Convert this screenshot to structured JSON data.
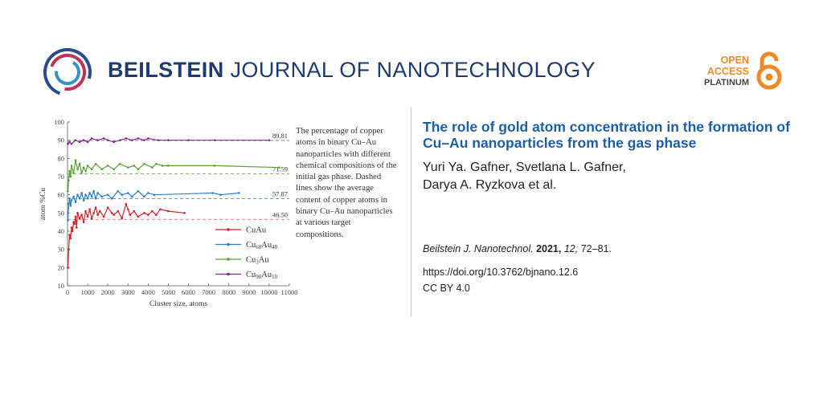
{
  "header": {
    "journal_bold": "BEILSTEIN",
    "journal_rest": " JOURNAL OF NANOTECHNOLOGY",
    "open_access": {
      "line1": "OPEN",
      "line2": "ACCESS",
      "line3": "PLATINUM"
    },
    "colors": {
      "journal": "#1f3b6e",
      "open_access": "#f08a24"
    }
  },
  "figure": {
    "caption": "The percentage of copper atoms in binary Cu–Au nanoparticles with different chemical compositions of the initial gas phase. Dashed lines show the average content of copper atoms in binary Cu–Au nanoparticles at various target compositions."
  },
  "chart_data": {
    "type": "line",
    "xlabel": "Cluster size, atoms",
    "ylabel": "atom %Cu",
    "xlim": [
      0,
      11000
    ],
    "ylim": [
      10,
      100
    ],
    "xticks": [
      0,
      1000,
      2000,
      3000,
      4000,
      5000,
      6000,
      7000,
      8000,
      9000,
      10000,
      11000
    ],
    "yticks": [
      10,
      20,
      30,
      40,
      50,
      60,
      70,
      80,
      90,
      100
    ],
    "grid": false,
    "legend_position": "bottom-center",
    "reference_lines": [
      {
        "value": 89.81,
        "label": "89.81",
        "color": "#9c4fa0"
      },
      {
        "value": 71.59,
        "label": "71.59",
        "color": "#7cab5b"
      },
      {
        "value": 57.87,
        "label": "57.87",
        "color": "#5aa0d8"
      },
      {
        "value": 46.5,
        "label": "46.50",
        "color": "#e07070"
      }
    ],
    "series": [
      {
        "name": "CuAu",
        "base": "Cu",
        "sub1": "",
        "mid": "Au",
        "sub2": "",
        "color": "#c8262d",
        "x": [
          20,
          60,
          100,
          150,
          200,
          250,
          300,
          350,
          400,
          450,
          500,
          600,
          700,
          800,
          900,
          1000,
          1100,
          1200,
          1300,
          1400,
          1500,
          1600,
          1800,
          2000,
          2200,
          2300,
          2500,
          2700,
          2900,
          3000,
          3100,
          3300,
          3500,
          3800,
          4000,
          4200,
          4400,
          4600,
          5000,
          5800
        ],
        "y": [
          20,
          30,
          38,
          36,
          42,
          40,
          45,
          44,
          48,
          42,
          50,
          47,
          49,
          45,
          51,
          48,
          52,
          47,
          50,
          53,
          49,
          51,
          48,
          53,
          50,
          49,
          51,
          47,
          55,
          52,
          49,
          51,
          48,
          50,
          49,
          51,
          49,
          52,
          51,
          50
        ]
      },
      {
        "name": "Cu60Au40",
        "base": "Cu",
        "sub1": "60",
        "mid": "Au",
        "sub2": "40",
        "color": "#2a7fc6",
        "x": [
          20,
          60,
          100,
          150,
          200,
          300,
          400,
          500,
          600,
          700,
          800,
          900,
          1000,
          1100,
          1200,
          1300,
          1400,
          1500,
          1700,
          2000,
          2200,
          2500,
          2700,
          3000,
          3200,
          3500,
          3800,
          4000,
          4300,
          7200,
          7600,
          8500
        ],
        "y": [
          46,
          55,
          58,
          54,
          57,
          59,
          56,
          60,
          58,
          61,
          57,
          60,
          58,
          61,
          59,
          62,
          58,
          61,
          59,
          60,
          58,
          62,
          60,
          61,
          59,
          62,
          59,
          61,
          60,
          61,
          60,
          61
        ]
      },
      {
        "name": "Cu3Au",
        "base": "Cu",
        "sub1": "3",
        "mid": "Au",
        "sub2": "",
        "color": "#5a9e36",
        "x": [
          20,
          60,
          100,
          150,
          200,
          300,
          400,
          500,
          600,
          700,
          800,
          900,
          1000,
          1200,
          1400,
          1700,
          2000,
          2300,
          2600,
          3000,
          3300,
          3500,
          3800,
          4200,
          4400,
          4700,
          5000,
          7300,
          10500
        ],
        "y": [
          62,
          68,
          73,
          70,
          76,
          72,
          79,
          74,
          77,
          72,
          75,
          73,
          76,
          74,
          77,
          74,
          76,
          74,
          77,
          75,
          76,
          74,
          77,
          75,
          77,
          76,
          76,
          76,
          75
        ]
      },
      {
        "name": "Cu90Au10",
        "base": "Cu",
        "sub1": "90",
        "mid": "Au",
        "sub2": "10",
        "color": "#7b2a8c",
        "x": [
          20,
          100,
          200,
          400,
          600,
          800,
          1000,
          1200,
          1500,
          1800,
          2000,
          2300,
          2600,
          2900,
          3200,
          3500,
          3800,
          4000,
          4500,
          5000,
          6000,
          7300,
          10000
        ],
        "y": [
          88,
          89,
          88,
          90,
          89,
          90,
          89,
          91,
          90,
          91,
          90,
          89,
          90,
          91,
          90,
          91,
          90,
          91,
          90,
          90,
          90,
          90,
          90
        ]
      }
    ]
  },
  "article": {
    "title": "The role of gold atom concentration in the formation of Cu–Au nanoparticles from the gas phase",
    "authors_line1": "Yuri Ya. Gafner, Svetlana L. Gafner,",
    "authors_line2": "Darya A. Ryzkova et al.",
    "journal_abbr": "Beilstein J. Nanotechnol.",
    "year": "2021,",
    "volume": "12,",
    "pages": "72–81.",
    "doi": "https://doi.org/10.3762/bjnano.12.6",
    "license": "CC BY 4.0"
  }
}
